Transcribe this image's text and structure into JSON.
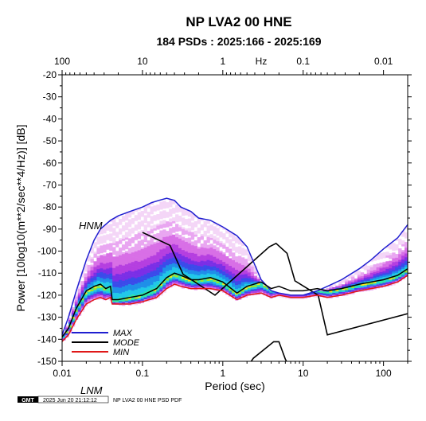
{
  "chart_data": {
    "type": "line",
    "title": "NP LVA2 00 HNE",
    "subtitle": "184 PSDs : 2025:166 - 2025:169",
    "xlabel": "Period (sec)",
    "ylabel": "Power [10log10(m**2/sec**4/Hz)] [dB]",
    "top_axis_label": "Hz",
    "x_scale": "log",
    "xlim": [
      0.01,
      200
    ],
    "ylim": [
      -150,
      -20
    ],
    "x_ticks": [
      0.01,
      0.1,
      1,
      10,
      100
    ],
    "x_tick_labels": [
      "0.01",
      "0.1",
      "1",
      "10",
      "100"
    ],
    "top_ticks_hz": [
      100,
      10,
      1,
      0.1,
      0.01
    ],
    "top_tick_labels": [
      "100",
      "10",
      "1",
      "0.1",
      "0.01"
    ],
    "y_ticks": [
      -20,
      -30,
      -40,
      -50,
      -60,
      -70,
      -80,
      -90,
      -100,
      -110,
      -120,
      -130,
      -140,
      -150
    ],
    "y_tick_labels": [
      "-20",
      "-30",
      "-40",
      "-50",
      "-60",
      "-70",
      "-80",
      "-90",
      "-100",
      "-110",
      "-120",
      "-130",
      "-140",
      "-150"
    ],
    "series": [
      {
        "name": "MAX",
        "color": "#1f1fd0",
        "x": [
          0.01,
          0.012,
          0.015,
          0.02,
          0.025,
          0.03,
          0.04,
          0.05,
          0.07,
          0.1,
          0.13,
          0.16,
          0.2,
          0.25,
          0.3,
          0.4,
          0.5,
          0.7,
          1,
          1.5,
          2,
          3,
          4,
          5,
          7,
          10,
          15,
          20,
          30,
          50,
          70,
          100,
          150,
          200
        ],
        "y": [
          -138,
          -130,
          -118,
          -104,
          -95,
          -90,
          -86,
          -84,
          -82,
          -80,
          -78,
          -77,
          -76,
          -77,
          -80,
          -82,
          -85,
          -86,
          -89,
          -93,
          -98,
          -113,
          -118,
          -119,
          -120,
          -120,
          -118,
          -116,
          -113,
          -108,
          -104,
          -99,
          -94,
          -88
        ]
      },
      {
        "name": "MODE",
        "color": "#000000",
        "x": [
          0.01,
          0.012,
          0.015,
          0.02,
          0.025,
          0.03,
          0.035,
          0.04,
          0.042,
          0.05,
          0.07,
          0.1,
          0.15,
          0.2,
          0.25,
          0.3,
          0.4,
          0.5,
          0.7,
          1,
          1.5,
          2,
          3,
          4,
          5,
          7,
          10,
          15,
          20,
          30,
          50,
          70,
          100,
          150,
          200
        ],
        "y": [
          -139,
          -135,
          -126,
          -118,
          -116,
          -115,
          -117,
          -116,
          -122,
          -122,
          -121,
          -120,
          -117,
          -112,
          -110,
          -111,
          -113,
          -113,
          -112,
          -114,
          -119,
          -116,
          -114,
          -117,
          -116,
          -118,
          -118,
          -117,
          -118,
          -117,
          -115,
          -114,
          -113,
          -111,
          -108
        ]
      },
      {
        "name": "MIN",
        "color": "#e01818",
        "x": [
          0.01,
          0.012,
          0.015,
          0.02,
          0.025,
          0.03,
          0.035,
          0.04,
          0.042,
          0.05,
          0.07,
          0.1,
          0.15,
          0.2,
          0.25,
          0.3,
          0.4,
          0.5,
          0.7,
          1,
          1.5,
          2,
          3,
          4,
          5,
          7,
          10,
          15,
          20,
          30,
          50,
          70,
          100,
          150,
          200
        ],
        "y": [
          -141,
          -138,
          -131,
          -124,
          -122,
          -121,
          -122,
          -121,
          -124,
          -124,
          -124,
          -123,
          -121,
          -117,
          -115,
          -116,
          -117,
          -117,
          -117,
          -118,
          -122,
          -120,
          -119,
          -121,
          -120,
          -121,
          -121,
          -120,
          -121,
          -120,
          -118,
          -117,
          -116,
          -114,
          -111
        ]
      }
    ],
    "models": [
      {
        "name": "HNM",
        "x": [
          0.1,
          0.22,
          0.32,
          0.8,
          3.8,
          4.6,
          6.3,
          7.9,
          15.4,
          20,
          354
        ],
        "y": [
          -91.5,
          -97.4,
          -110.5,
          -120,
          -98,
          -96.5,
          -101,
          -113.5,
          -120,
          -138,
          -126
        ]
      },
      {
        "name": "LNM",
        "x": [
          0.1,
          0.17,
          0.4,
          0.8,
          1.24,
          2.4,
          4.3,
          5,
          6,
          10
        ],
        "y": [
          -168,
          -166.7,
          -166.7,
          -169.2,
          -163.7,
          -148.6,
          -141.1,
          -141.1,
          -149,
          -163.8
        ]
      }
    ],
    "density_color_scale": [
      "#f4d6f7",
      "#e9a6f1",
      "#d86fe6",
      "#b53fe0",
      "#7b2fe6",
      "#3b4bea",
      "#1f8fe8",
      "#21c8e8",
      "#2fe6a8",
      "#9ae62f",
      "#f0ea1f"
    ],
    "legend": {
      "position": "bottom-left",
      "items": [
        {
          "label": "MAX",
          "color": "#1f1fd0"
        },
        {
          "label": "MODE",
          "color": "#000000"
        },
        {
          "label": "MIN",
          "color": "#e01818"
        }
      ]
    },
    "grid": false
  },
  "footer": {
    "logo_text": "GMT",
    "timestamp": "2025 Jun 20 21:12:12",
    "caption": "NP LVA2 00 HNE PSD PDF"
  }
}
